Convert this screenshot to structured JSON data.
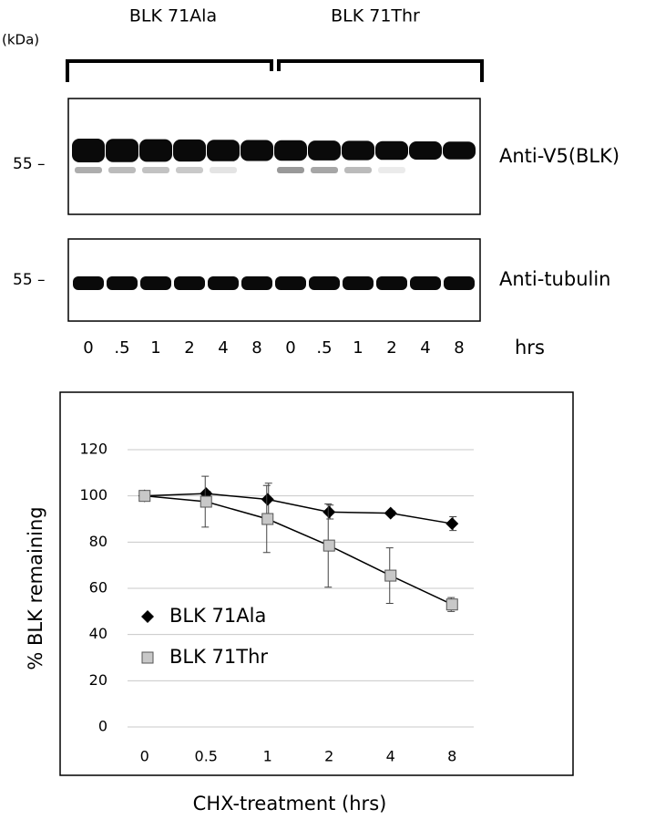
{
  "blot": {
    "groups": [
      "BLK 71Ala",
      "BLK 71Thr"
    ],
    "unit": "(kDa)",
    "markers": [
      "55 –",
      "55 –"
    ],
    "antibodies": [
      "Anti-V5(BLK)",
      "Anti-tubulin"
    ],
    "lanes": [
      "0",
      ".5",
      "1",
      "2",
      "4",
      "8",
      "0",
      ".5",
      "1",
      "2",
      "4",
      "8"
    ],
    "lane_unit": "hrs"
  },
  "chart_data": {
    "type": "line",
    "xlabel": "CHX-treatment (hrs)",
    "ylabel": "% BLK remaining",
    "categories": [
      "0",
      "0.5",
      "1",
      "2",
      "4",
      "8"
    ],
    "series": [
      {
        "name": "BLK 71Ala",
        "color": "#000000",
        "marker": "diamond",
        "values": [
          100,
          101,
          98.5,
          93,
          92.5,
          88
        ],
        "errors": [
          null,
          1,
          7,
          3,
          1,
          3
        ]
      },
      {
        "name": "BLK 71Thr",
        "color": "#c8c8c8",
        "marker": "square",
        "values": [
          100,
          97.5,
          90,
          78.5,
          65.5,
          53
        ],
        "errors": [
          null,
          11,
          14.5,
          18,
          12,
          3
        ]
      }
    ],
    "ylim": [
      0,
      120
    ],
    "yticks": [
      0,
      20,
      40,
      60,
      80,
      100,
      120
    ],
    "grid": true,
    "legend": "lower left"
  }
}
